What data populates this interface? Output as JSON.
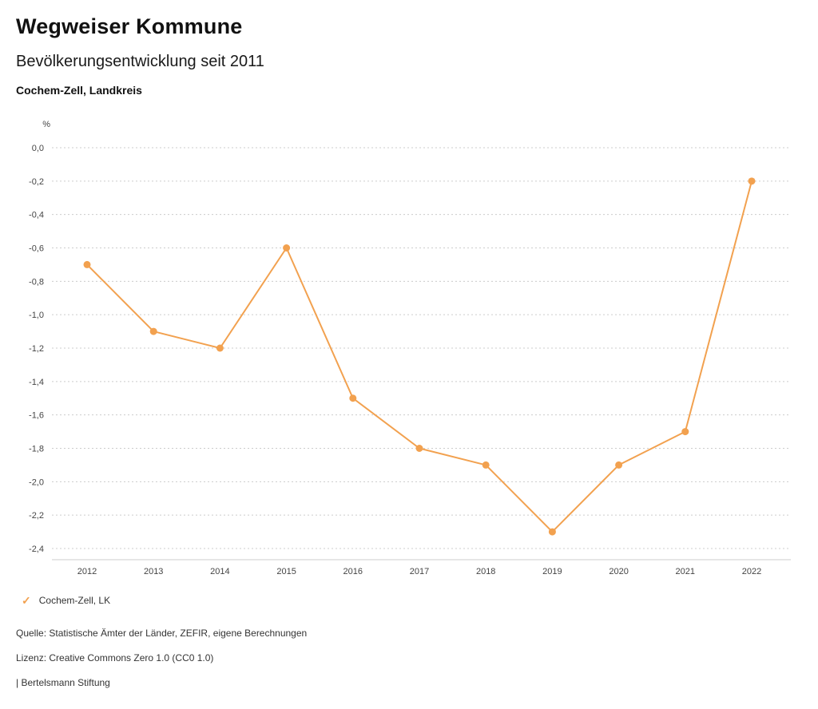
{
  "header": {
    "title": "Wegweiser Kommune",
    "subtitle": "Bevölkerungsentwicklung seit 2011",
    "region": "Cochem-Zell, Landkreis"
  },
  "chart_data": {
    "type": "line",
    "title": "Bevölkerungsentwicklung seit 2011",
    "unit_label": "%",
    "x": [
      2012,
      2013,
      2014,
      2015,
      2016,
      2017,
      2018,
      2019,
      2020,
      2021,
      2022
    ],
    "series": [
      {
        "name": "Cochem-Zell, LK",
        "color": "#f2a14f",
        "values": [
          -0.7,
          -1.1,
          -1.2,
          -0.6,
          -1.5,
          -1.8,
          -1.9,
          -2.3,
          -1.9,
          -1.7,
          -0.2
        ]
      }
    ],
    "ylim": [
      -2.4,
      0.0
    ],
    "ytick_step": 0.2,
    "ytick_labels": [
      "0,0",
      "-0,2",
      "-0,4",
      "-0,6",
      "-0,8",
      "-1,0",
      "-1,2",
      "-1,4",
      "-1,6",
      "-1,8",
      "-2,0",
      "-2,2",
      "-2,4"
    ],
    "grid": "dotted-horizontal",
    "legend_position": "bottom-left",
    "grid_color": "#cccccc",
    "tick_color": "#444444"
  },
  "legend": {
    "items": [
      {
        "label": "Cochem-Zell, LK",
        "color": "#f2a14f",
        "check_icon": "✓"
      }
    ]
  },
  "footer": {
    "source": "Quelle: Statistische Ämter der Länder, ZEFIR, eigene Berechnungen",
    "license": "Lizenz: Creative Commons Zero 1.0 (CC0 1.0)",
    "attribution": "| Bertelsmann Stiftung"
  }
}
